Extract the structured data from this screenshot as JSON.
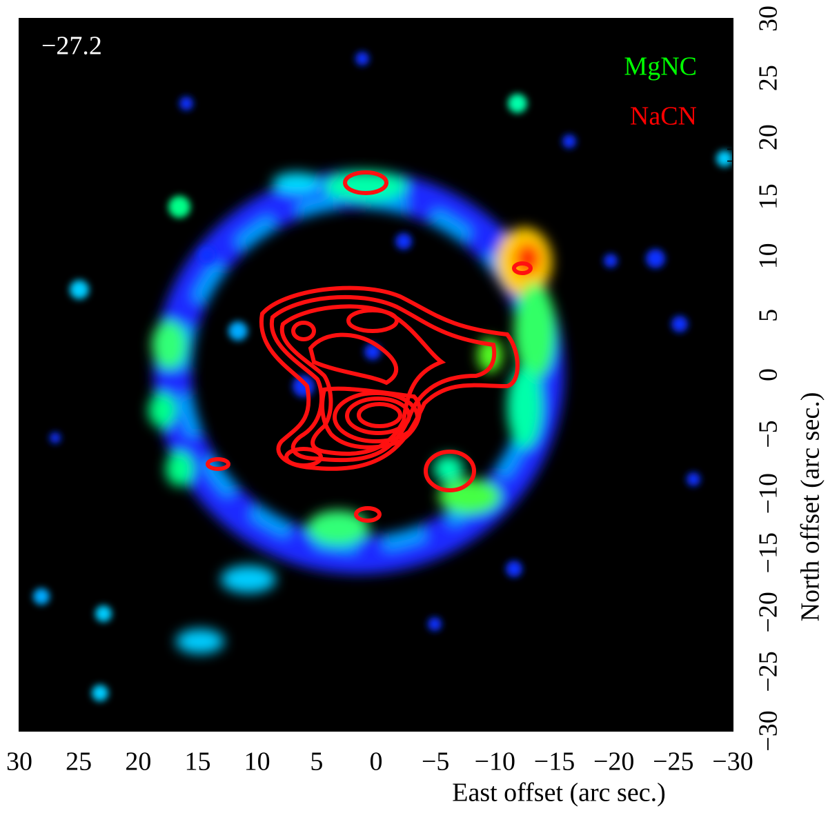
{
  "chart_data": {
    "type": "contour",
    "annotation": "−27.2",
    "xlabel": "East offset (arc sec.)",
    "ylabel": "North offset (arc sec.)",
    "series": [
      {
        "name": "MgNC",
        "color": "#00ff00"
      },
      {
        "name": "NaCN",
        "color": "#ff0000"
      }
    ],
    "xlim": [
      30,
      -30
    ],
    "ylim": [
      -30,
      30
    ],
    "xticks": [
      30,
      25,
      20,
      15,
      10,
      5,
      0,
      {
        "value": -5,
        "label": "−5"
      },
      {
        "value": -10,
        "label": "−10"
      },
      {
        "value": -15,
        "label": "−15"
      },
      {
        "value": -20,
        "label": "−20"
      },
      {
        "value": -25,
        "label": "−25"
      },
      {
        "value": -30,
        "label": "−30"
      }
    ],
    "yticks": [
      {
        "value": -30,
        "label": "−30"
      },
      {
        "value": -25,
        "label": "−25"
      },
      {
        "value": -20,
        "label": "−20"
      },
      {
        "value": -15,
        "label": "−15"
      },
      {
        "value": -10,
        "label": "−10"
      },
      {
        "value": -5,
        "label": "−5"
      },
      0,
      5,
      10,
      15,
      20,
      25,
      30
    ]
  }
}
